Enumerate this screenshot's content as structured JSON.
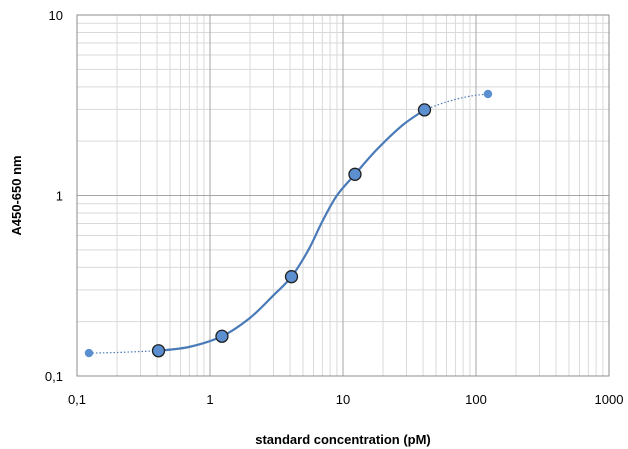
{
  "chart_data": {
    "type": "scatter",
    "title": "",
    "xlabel": "standard concentration (pM)",
    "ylabel": "A450-650 nm",
    "x_scale": "log",
    "y_scale": "log",
    "xlim": [
      0.1,
      1000
    ],
    "ylim": [
      0.1,
      10
    ],
    "x_tick_labels": [
      "0,1",
      "1",
      "10",
      "100",
      "1000"
    ],
    "y_tick_labels": [
      "0,1",
      "1",
      "10"
    ],
    "grid": true,
    "legend": "none",
    "colors": {
      "curve": "#4a7ab8",
      "marker_fill": "#5b8fcf",
      "marker_edge": "#1f1f1f",
      "grid_major": "#a6a6a6",
      "grid_minor": "#d9d9d9"
    },
    "series": [
      {
        "points": [
          {
            "x": 0.41,
            "y": 0.138
          },
          {
            "x": 1.23,
            "y": 0.166
          },
          {
            "x": 4.1,
            "y": 0.355
          },
          {
            "x": 12.3,
            "y": 1.31
          },
          {
            "x": 41,
            "y": 2.98
          }
        ]
      },
      {
        "points": [
          {
            "x": 0.123,
            "y": 0.134
          },
          {
            "x": 123,
            "y": 3.65
          }
        ]
      }
    ],
    "fit_curve": [
      {
        "x": 0.123,
        "y": 0.134
      },
      {
        "x": 0.2,
        "y": 0.135
      },
      {
        "x": 0.41,
        "y": 0.138
      },
      {
        "x": 0.7,
        "y": 0.145
      },
      {
        "x": 1.23,
        "y": 0.166
      },
      {
        "x": 2,
        "y": 0.21
      },
      {
        "x": 3,
        "y": 0.28
      },
      {
        "x": 4.1,
        "y": 0.355
      },
      {
        "x": 5.5,
        "y": 0.5
      },
      {
        "x": 7,
        "y": 0.72
      },
      {
        "x": 9,
        "y": 1.0
      },
      {
        "x": 12.3,
        "y": 1.31
      },
      {
        "x": 18,
        "y": 1.8
      },
      {
        "x": 28,
        "y": 2.45
      },
      {
        "x": 41,
        "y": 2.98
      },
      {
        "x": 60,
        "y": 3.3
      },
      {
        "x": 90,
        "y": 3.55
      },
      {
        "x": 123,
        "y": 3.65
      }
    ]
  }
}
